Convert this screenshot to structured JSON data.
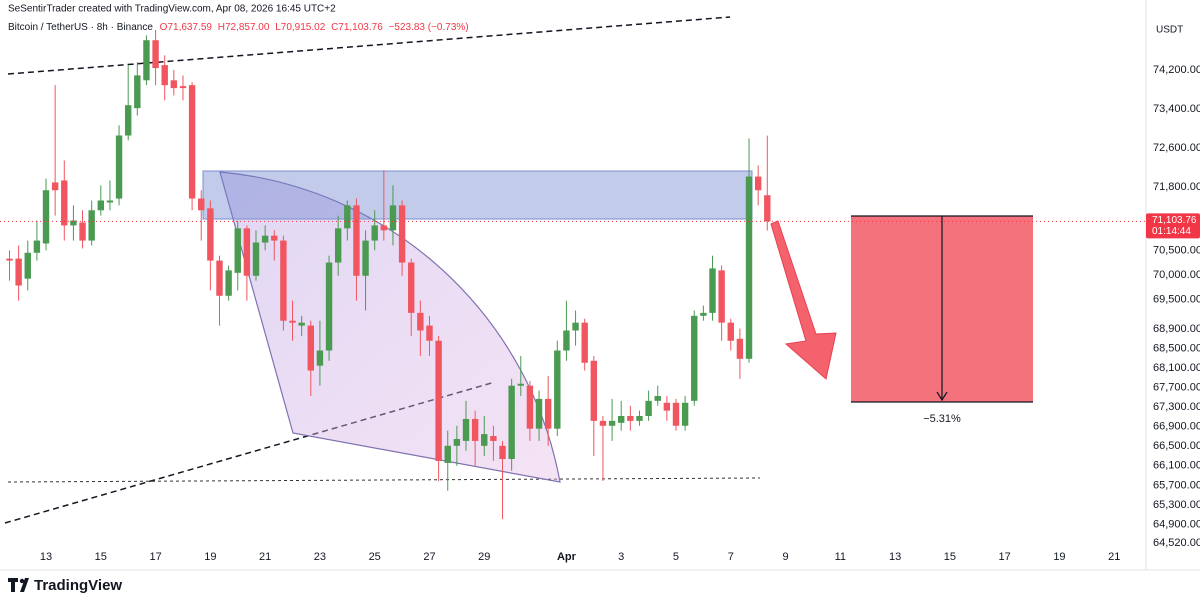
{
  "chart_data": {
    "type": "candlestick",
    "header": {
      "author": "SeSentirTrader created with TradingView.com, Apr 08, 2026 16:45 UTC+2",
      "symbol": "Bitcoin / TetherUS · 8h · Binance",
      "open": "O71,637.59",
      "high": "H72,857.00",
      "low": "L70,915.02",
      "close": "C71,103.76",
      "change": "−523.83 (−0.73%)"
    },
    "currency": "USDT",
    "last_price": {
      "value": 71103.76,
      "label": "71,103.76"
    },
    "countdown": "01:14:44",
    "annotation": "−5.31%",
    "brand": "TradingView",
    "up_color": "#4a9a52",
    "down_color": "#f05560",
    "ylim": [
      64480,
      75633
    ],
    "yticks": [
      {
        "value": 74200,
        "label": "74,200.00"
      },
      {
        "value": 73400,
        "label": "73,400.00"
      },
      {
        "value": 72600,
        "label": "72,600.00"
      },
      {
        "value": 71800,
        "label": "71,800.00"
      },
      {
        "value": 70500,
        "label": "70,500.00"
      },
      {
        "value": 70000,
        "label": "70,000.00"
      },
      {
        "value": 69500,
        "label": "69,500.00"
      },
      {
        "value": 68900,
        "label": "68,900.00"
      },
      {
        "value": 68500,
        "label": "68,500.00"
      },
      {
        "value": 68100,
        "label": "68,100.00"
      },
      {
        "value": 67700,
        "label": "67,700.00"
      },
      {
        "value": 67300,
        "label": "67,300.00"
      },
      {
        "value": 66900,
        "label": "66,900.00"
      },
      {
        "value": 66500,
        "label": "66,500.00"
      },
      {
        "value": 66100,
        "label": "66,100.00"
      },
      {
        "value": 65700,
        "label": "65,700.00"
      },
      {
        "value": 65300,
        "label": "65,300.00"
      },
      {
        "value": 64900,
        "label": "64,900.00"
      },
      {
        "value": 64520,
        "label": "64,520.00"
      }
    ],
    "grid": false,
    "categories": [
      null,
      null,
      null,
      null,
      "13",
      null,
      null,
      null,
      null,
      null,
      "15",
      null,
      null,
      null,
      null,
      null,
      "17",
      null,
      null,
      null,
      null,
      null,
      "19",
      null,
      null,
      null,
      null,
      null,
      "21",
      null,
      null,
      null,
      null,
      null,
      "23",
      null,
      null,
      null,
      null,
      null,
      "25",
      null,
      null,
      null,
      null,
      null,
      "27",
      null,
      null,
      null,
      null,
      null,
      "29",
      null,
      null,
      null,
      null,
      null,
      null,
      null,
      null,
      "Apr",
      null,
      null,
      null,
      null,
      null,
      "3",
      null,
      null,
      null,
      null,
      null,
      "5",
      null,
      null,
      null,
      null,
      null,
      "7",
      null,
      null,
      null,
      null,
      null,
      "9",
      null,
      null,
      null,
      null,
      null,
      "11",
      null,
      null,
      null,
      null,
      null,
      "13",
      null,
      null,
      null,
      null,
      null,
      "15",
      null,
      null,
      null,
      null,
      null,
      "17",
      null,
      null,
      null,
      null,
      null,
      "19",
      null,
      null,
      null,
      null,
      null,
      "21",
      null,
      null,
      null
    ],
    "open": [
      70340,
      70340,
      69930,
      70460,
      70650,
      71900,
      71940,
      71020,
      71080,
      70710,
      71330,
      71490,
      71570,
      72860,
      73420,
      73990,
      74810,
      74300,
      73990,
      73870,
      73890,
      71570,
      71370,
      70300,
      69580,
      70050,
      70960,
      69990,
      70670,
      70810,
      70710,
      69070,
      68970,
      68970,
      68150,
      68460,
      70260,
      70960,
      71430,
      69990,
      70710,
      71020,
      70920,
      71430,
      70260,
      69230,
      68970,
      68660,
      66160,
      66510,
      66610,
      67060,
      66510,
      66710,
      66510,
      66240,
      67740,
      67740,
      66860,
      67470,
      66860,
      68460,
      68870,
      69030,
      68250,
      67020,
      66920,
      66980,
      67120,
      67020,
      67120,
      67430,
      67390,
      67390,
      66920,
      67430,
      69170,
      69230,
      70100,
      69030,
      68700,
      68290,
      72020,
      71637.59,
      null,
      null,
      null,
      null,
      null,
      null,
      null,
      null,
      null,
      null,
      null,
      null,
      null,
      null,
      null,
      null,
      null,
      null,
      null,
      null,
      null,
      null,
      null,
      null,
      null,
      null,
      null,
      null,
      null,
      null,
      null,
      null,
      null,
      null,
      null,
      null,
      null,
      null,
      null,
      null,
      null
    ],
    "high": [
      70510,
      70610,
      70710,
      71120,
      71980,
      73890,
      72350,
      71430,
      71330,
      71530,
      71840,
      71940,
      73070,
      74300,
      74360,
      74910,
      75020,
      74500,
      74200,
      74090,
      73950,
      71740,
      71530,
      70400,
      70200,
      71120,
      71020,
      70920,
      71020,
      70920,
      70810,
      69480,
      69170,
      69070,
      69070,
      70400,
      71220,
      71530,
      71570,
      70920,
      71330,
      72150,
      71840,
      71530,
      70340,
      69480,
      69170,
      68760,
      66820,
      66920,
      67430,
      67230,
      67120,
      66920,
      66610,
      67880,
      68350,
      67840,
      67640,
      67940,
      68660,
      69480,
      69280,
      69110,
      68350,
      67120,
      67470,
      67430,
      67330,
      67230,
      67640,
      67740,
      67530,
      67470,
      67530,
      69280,
      69380,
      70400,
      70200,
      69110,
      68910,
      72800,
      72250,
      72857,
      null,
      null,
      null,
      null,
      null,
      null,
      null,
      null,
      null,
      null,
      null,
      null,
      null,
      null,
      null,
      null,
      null,
      null,
      null,
      null,
      null,
      null,
      null,
      null,
      null,
      null,
      null,
      null,
      null,
      null,
      null,
      null,
      null,
      null,
      null,
      null,
      null,
      null,
      null,
      null,
      null
    ],
    "low": [
      69890,
      69480,
      69690,
      70300,
      70510,
      71220,
      70710,
      70710,
      70550,
      70610,
      71220,
      71330,
      71430,
      72760,
      73270,
      73890,
      73890,
      73580,
      73680,
      73580,
      71330,
      70710,
      69690,
      68970,
      69480,
      69690,
      69480,
      69890,
      70510,
      70300,
      68870,
      68660,
      68760,
      67530,
      67740,
      68250,
      69990,
      70710,
      69480,
      69280,
      70510,
      70710,
      70610,
      69990,
      68760,
      68350,
      68350,
      65790,
      65590,
      66100,
      66410,
      66100,
      66300,
      66200,
      65010,
      66000,
      67530,
      66610,
      66610,
      66510,
      66710,
      68250,
      68560,
      68050,
      66300,
      65790,
      66610,
      66820,
      66820,
      66920,
      67020,
      67330,
      67020,
      66820,
      66820,
      67330,
      69070,
      69070,
      68660,
      68460,
      67880,
      68210,
      71430,
      70915.02,
      null,
      null,
      null,
      null,
      null,
      null,
      null,
      null,
      null,
      null,
      null,
      null,
      null,
      null,
      null,
      null,
      null,
      null,
      null,
      null,
      null,
      null,
      null,
      null,
      null,
      null,
      null,
      null,
      null,
      null,
      null,
      null,
      null,
      null,
      null,
      null,
      null,
      null,
      null,
      null,
      null
    ],
    "close": [
      70300,
      69790,
      70460,
      70710,
      71740,
      71740,
      71020,
      71120,
      70710,
      71330,
      71530,
      71530,
      72860,
      73480,
      74090,
      74810,
      74240,
      73890,
      73830,
      73830,
      71570,
      71330,
      70300,
      69580,
      70100,
      70960,
      69990,
      70670,
      70810,
      70710,
      69070,
      69030,
      69030,
      68050,
      68460,
      70260,
      70960,
      71430,
      69990,
      70710,
      71020,
      70920,
      71430,
      70260,
      69230,
      68870,
      68660,
      66200,
      66510,
      66650,
      67060,
      66610,
      66750,
      66610,
      66240,
      67740,
      67780,
      66860,
      67470,
      66860,
      68460,
      68870,
      69030,
      68210,
      67020,
      66920,
      67020,
      67120,
      67020,
      67120,
      67430,
      67530,
      67230,
      66920,
      67390,
      69170,
      69230,
      70140,
      69030,
      68660,
      68290,
      72020,
      71740,
      71103.76,
      null,
      null,
      null,
      null,
      null,
      null,
      null,
      null,
      null,
      null,
      null,
      null,
      null,
      null,
      null,
      null,
      null,
      null,
      null,
      null,
      null,
      null,
      null,
      null,
      null,
      null,
      null,
      null,
      null,
      null,
      null,
      null,
      null,
      null,
      null,
      null,
      null,
      null,
      null,
      null,
      null
    ]
  }
}
